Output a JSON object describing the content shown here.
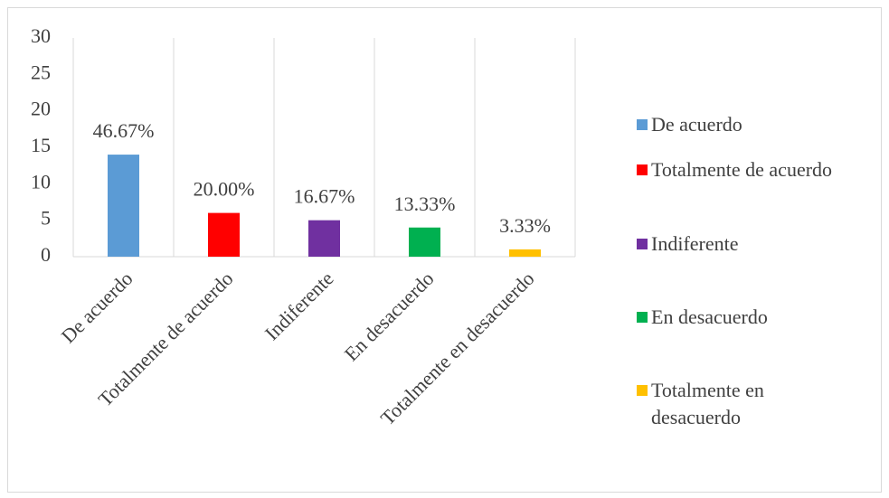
{
  "chart_data": {
    "type": "bar",
    "categories": [
      "De acuerdo",
      "Totalmente de acuerdo",
      "Indiferente",
      "En desacuerdo",
      "Totalmente en desacuerdo"
    ],
    "values": [
      14,
      6,
      5,
      4,
      1
    ],
    "value_labels": [
      "46.67%",
      "20.00%",
      "16.67%",
      "13.33%",
      "3.33%"
    ],
    "colors": [
      "#5b9bd5",
      "#ff0000",
      "#7030a0",
      "#00b050",
      "#ffc000"
    ],
    "ylim": [
      0,
      30
    ],
    "yticks": [
      0,
      5,
      10,
      15,
      20,
      25,
      30
    ],
    "legend": "right"
  }
}
